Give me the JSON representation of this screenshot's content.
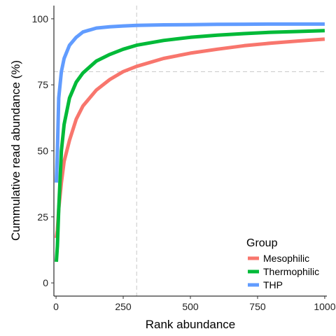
{
  "chart_data": {
    "type": "line",
    "xlabel": "Rank abundance",
    "ylabel": "Cummulative read abundance (%)",
    "xlim": [
      -8,
      1008
    ],
    "ylim": [
      -5,
      105
    ],
    "x_ticks": [
      0,
      250,
      500,
      750,
      1000
    ],
    "y_ticks": [
      0,
      25,
      50,
      75,
      100
    ],
    "x_tick_labels": [
      "0",
      "250",
      "500",
      "750",
      "1000"
    ],
    "y_tick_labels": [
      "0",
      "25",
      "50",
      "75",
      "100"
    ],
    "grid": false,
    "reference_lines": {
      "x": 300,
      "y": 80
    },
    "legend": {
      "title": "Group",
      "position": "bottom-right"
    },
    "series": [
      {
        "name": "Mesophilic",
        "color": "#F8766D",
        "x": [
          1,
          5,
          10,
          20,
          30,
          50,
          75,
          100,
          150,
          200,
          250,
          300,
          400,
          500,
          600,
          700,
          800,
          900,
          1000
        ],
        "y": [
          17,
          20,
          28,
          38,
          46,
          54,
          62,
          67,
          73,
          77,
          80,
          82,
          85,
          87,
          88.5,
          89.8,
          90.8,
          91.6,
          92.3
        ]
      },
      {
        "name": "Thermophilic",
        "color": "#00BA38",
        "x": [
          1,
          5,
          10,
          20,
          30,
          50,
          75,
          100,
          150,
          200,
          250,
          300,
          400,
          500,
          600,
          700,
          800,
          900,
          1000
        ],
        "y": [
          8,
          14,
          28,
          50,
          60,
          70,
          76,
          79.5,
          84,
          86.5,
          88.5,
          90,
          91.8,
          93,
          93.8,
          94.4,
          94.9,
          95.2,
          95.5
        ]
      },
      {
        "name": "THP",
        "color": "#619CFF",
        "x": [
          1,
          5,
          10,
          20,
          30,
          50,
          75,
          100,
          150,
          200,
          250,
          300,
          400,
          500,
          600,
          700,
          800,
          900,
          1000
        ],
        "y": [
          38,
          50,
          70,
          80,
          85,
          90,
          93,
          95,
          96.5,
          97,
          97.3,
          97.5,
          97.7,
          97.8,
          97.9,
          97.95,
          98,
          98,
          98
        ]
      }
    ]
  }
}
